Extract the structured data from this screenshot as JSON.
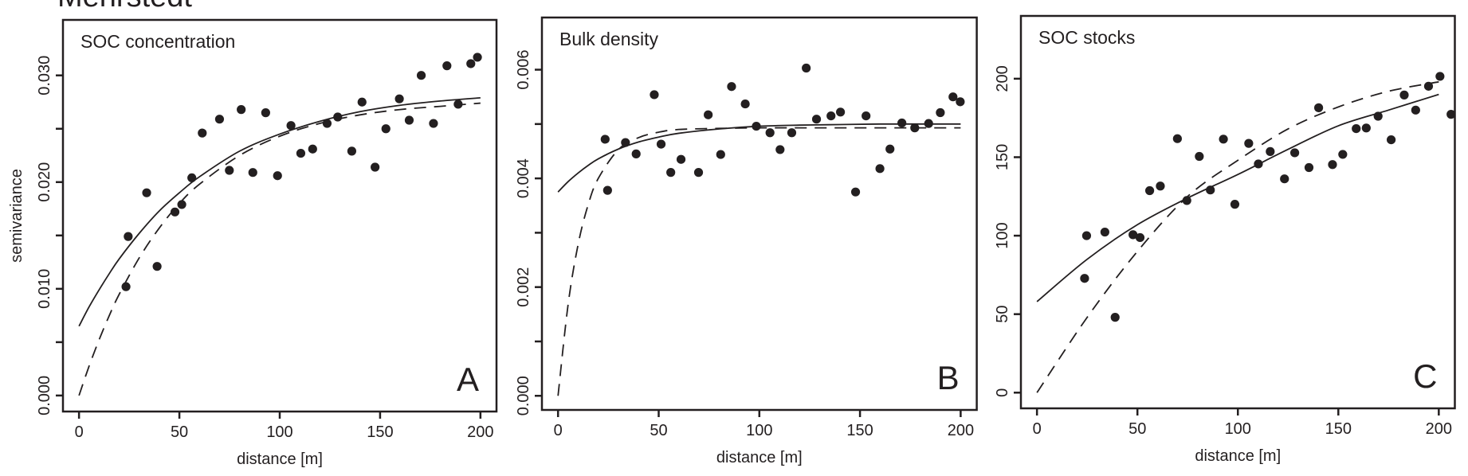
{
  "figure_title": "Mehrstedt",
  "chart_data": [
    {
      "type": "scatter",
      "title": "SOC concentration",
      "panel_letter": "A",
      "xlabel": "distance [m]",
      "ylabel": "semivariance",
      "xlim": [
        -8,
        208
      ],
      "ylim": [
        -0.0015,
        0.0352
      ],
      "xticks": [
        0,
        50,
        100,
        150,
        200
      ],
      "xtick_labels": [
        "0",
        "50",
        "100",
        "150",
        "200"
      ],
      "yticks": [
        0,
        0.005,
        0.01,
        0.015,
        0.02,
        0.025,
        0.03
      ],
      "ytick_labels": [
        "0.000",
        "",
        "0.010",
        "",
        "0.020",
        "",
        "0.030"
      ],
      "grid": false,
      "points": {
        "x": [
          23.4,
          24.5,
          33.7,
          38.9,
          47.8,
          51.2,
          56.2,
          61.4,
          70.0,
          74.9,
          80.8,
          86.6,
          93.0,
          98.9,
          105.6,
          110.5,
          116.4,
          123.6,
          128.9,
          135.9,
          141.0,
          147.5,
          152.9,
          159.6,
          164.5,
          170.5,
          176.6,
          183.3,
          188.9,
          195.2,
          198.5
        ],
        "y": [
          0.0102,
          0.0149,
          0.019,
          0.0121,
          0.0172,
          0.0179,
          0.0204,
          0.0246,
          0.0259,
          0.0211,
          0.0268,
          0.0209,
          0.0265,
          0.0206,
          0.0253,
          0.0227,
          0.0231,
          0.0255,
          0.0261,
          0.0229,
          0.0275,
          0.0214,
          0.025,
          0.0278,
          0.0258,
          0.03,
          0.0255,
          0.0309,
          0.0273,
          0.0311,
          0.0317
        ]
      },
      "fits": [
        {
          "style": "solid",
          "x": [
            0,
            5,
            10,
            15,
            20,
            30,
            40,
            50,
            60,
            80,
            100,
            120,
            140,
            160,
            180,
            200
          ],
          "y": [
            0.0065,
            0.0083,
            0.0099,
            0.0114,
            0.0128,
            0.0152,
            0.0173,
            0.019,
            0.0205,
            0.0229,
            0.0245,
            0.0257,
            0.0266,
            0.0272,
            0.0276,
            0.0279
          ]
        },
        {
          "style": "dashed",
          "x": [
            0,
            5,
            10,
            15,
            20,
            30,
            40,
            50,
            60,
            80,
            100,
            120,
            140,
            160,
            180,
            200
          ],
          "y": [
            0,
            0.00275,
            0.00522,
            0.00746,
            0.00948,
            0.0129,
            0.0157,
            0.018,
            0.0198,
            0.0225,
            0.0243,
            0.0255,
            0.0263,
            0.0268,
            0.0271,
            0.0274
          ]
        }
      ]
    },
    {
      "type": "scatter",
      "title": "Bulk density",
      "panel_letter": "B",
      "xlabel": "distance [m]",
      "ylabel": "",
      "xlim": [
        -8,
        208
      ],
      "ylim": [
        -0.00026,
        0.00696
      ],
      "xticks": [
        0,
        50,
        100,
        150,
        200
      ],
      "xtick_labels": [
        "0",
        "50",
        "100",
        "150",
        "200"
      ],
      "yticks": [
        0,
        0.001,
        0.002,
        0.003,
        0.004,
        0.005,
        0.006
      ],
      "ytick_labels": [
        "0.000",
        "",
        "0.002",
        "",
        "0.004",
        "",
        "0.006"
      ],
      "grid": false,
      "points": {
        "x": [
          23.4,
          24.6,
          33.5,
          38.8,
          47.8,
          51.2,
          56.0,
          61.1,
          69.8,
          74.6,
          80.8,
          86.2,
          93.0,
          98.5,
          105.3,
          110.3,
          116.1,
          123.3,
          128.4,
          135.6,
          140.3,
          147.8,
          153.0,
          159.9,
          164.9,
          170.8,
          177.2,
          184.1,
          189.9,
          196.2,
          199.8
        ],
        "y": [
          0.00472,
          0.00378,
          0.00466,
          0.00445,
          0.00554,
          0.00463,
          0.00411,
          0.00435,
          0.00411,
          0.00517,
          0.00444,
          0.00569,
          0.00537,
          0.00496,
          0.00484,
          0.00453,
          0.00484,
          0.00603,
          0.00509,
          0.00515,
          0.00522,
          0.00375,
          0.00515,
          0.00418,
          0.00454,
          0.00502,
          0.00493,
          0.00501,
          0.00521,
          0.0055,
          0.00541
        ]
      },
      "fits": [
        {
          "style": "solid",
          "x": [
            0,
            5,
            10,
            15,
            20,
            30,
            40,
            50,
            60,
            80,
            100,
            120,
            140,
            160,
            180,
            200
          ],
          "y": [
            0.00375,
            0.00394,
            0.0041,
            0.00424,
            0.00436,
            0.00454,
            0.00467,
            0.00476,
            0.00483,
            0.00491,
            0.00496,
            0.00498,
            0.00499,
            0.005,
            0.005,
            0.005
          ]
        },
        {
          "style": "dashed",
          "x": [
            0,
            5,
            10,
            15,
            20,
            30,
            40,
            50,
            60,
            80,
            100,
            120,
            140,
            160,
            180,
            200
          ],
          "y": [
            0,
            0.00168,
            0.00279,
            0.00352,
            0.004,
            0.00453,
            0.00475,
            0.00485,
            0.0049,
            0.00492,
            0.00493,
            0.00493,
            0.00493,
            0.00493,
            0.00493,
            0.00493
          ]
        }
      ]
    },
    {
      "type": "scatter",
      "title": "SOC stocks",
      "panel_letter": "C",
      "xlabel": "distance [m]",
      "ylabel": "",
      "xlim": [
        -8,
        208
      ],
      "ylim": [
        -10,
        240
      ],
      "xticks": [
        0,
        50,
        100,
        150,
        200
      ],
      "xtick_labels": [
        "0",
        "50",
        "100",
        "150",
        "200"
      ],
      "yticks": [
        0,
        50,
        100,
        150,
        200
      ],
      "ytick_labels": [
        "0",
        "50",
        "100",
        "150",
        "200"
      ],
      "grid": false,
      "points": {
        "x": [
          23.7,
          24.7,
          33.8,
          38.9,
          47.8,
          51.3,
          56.1,
          61.4,
          69.9,
          74.6,
          80.8,
          86.3,
          92.8,
          98.5,
          105.4,
          110.2,
          116.1,
          123.2,
          128.3,
          135.4,
          140.2,
          147.1,
          152.2,
          158.9,
          163.9,
          169.8,
          176.3,
          182.8,
          188.5,
          194.9,
          200.6,
          206.1
        ],
        "y": [
          72.8,
          100.0,
          102.3,
          48.0,
          100.6,
          98.8,
          128.7,
          131.6,
          161.8,
          122.4,
          150.5,
          129.1,
          161.5,
          120.0,
          158.8,
          145.7,
          153.6,
          136.2,
          152.8,
          143.4,
          181.5,
          145.3,
          151.8,
          168.2,
          168.6,
          176.1,
          161.1,
          189.6,
          180.0,
          195.2,
          201.5,
          177.3
        ]
      },
      "fits": [
        {
          "style": "solid",
          "x": [
            0,
            25,
            50,
            75,
            100,
            125,
            150,
            175,
            200
          ],
          "y": [
            58,
            85,
            107,
            124,
            139,
            155,
            170,
            180,
            190
          ]
        },
        {
          "style": "dashed",
          "x": [
            0,
            25,
            50,
            75,
            100,
            125,
            150,
            175,
            200
          ],
          "y": [
            0,
            48,
            90,
            125,
            148,
            168,
            182,
            192,
            198
          ]
        }
      ]
    }
  ]
}
